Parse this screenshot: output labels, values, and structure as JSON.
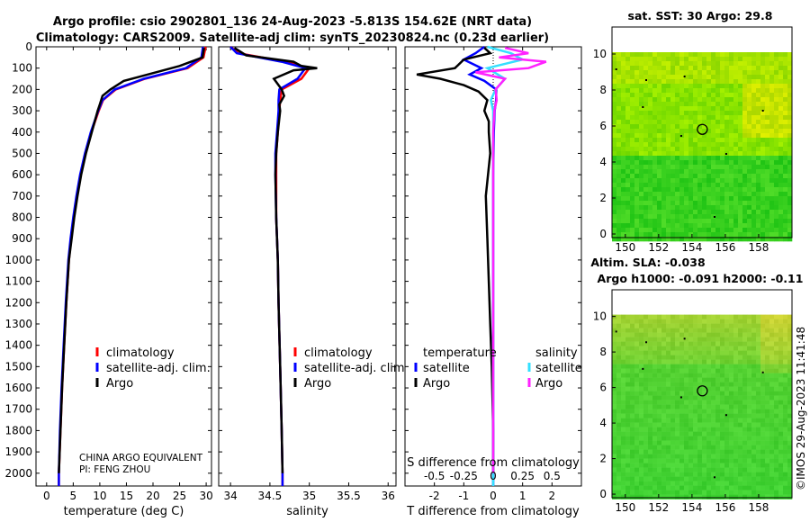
{
  "header": {
    "title_line1": "Argo profile: csio 2902801_136 24-Aug-2023 -5.813S 154.62E (NRT data)",
    "title_line2": "Climatology: CARS2009. Satellite-adj clim: synTS_20230824.nc (0.23d earlier)"
  },
  "watermark": "©IMOS 29-Aug-2023 11:41:48",
  "colors": {
    "climatology": "#ff0000",
    "satellite": "#0000ff",
    "argo": "#000000",
    "sat_salinity": "#33e0ff",
    "argo_salinity": "#ff22ff"
  },
  "chart_data": [
    {
      "type": "line",
      "name": "temperature",
      "xlabel": "temperature (deg C)",
      "ylabel": "",
      "xlim": [
        -2,
        31
      ],
      "ylim": [
        2060,
        0
      ],
      "xticks": [
        0,
        5,
        10,
        15,
        20,
        25,
        30
      ],
      "yticks": [
        0,
        100,
        200,
        300,
        400,
        500,
        600,
        700,
        800,
        900,
        1000,
        1100,
        1200,
        1300,
        1400,
        1500,
        1600,
        1700,
        1800,
        1900,
        2000
      ],
      "legend": [
        "climatology",
        "satellite-adj. clim.",
        "Argo"
      ],
      "legend_position": "lower-right",
      "annotation": [
        "CHINA ARGO EQUIVALENT",
        "PI: FENG ZHOU"
      ],
      "series": [
        {
          "name": "climatology",
          "color": "#ff0000",
          "depth": [
            0,
            50,
            100,
            150,
            200,
            250,
            300,
            400,
            500,
            600,
            700,
            800,
            900,
            1000,
            1200,
            1400,
            1600,
            1800,
            2000,
            2060
          ],
          "values": [
            29.9,
            29.5,
            26.5,
            18.5,
            13.0,
            10.6,
            9.8,
            8.4,
            7.3,
            6.4,
            5.7,
            5.1,
            4.6,
            4.2,
            3.7,
            3.3,
            2.9,
            2.6,
            2.3,
            2.3
          ]
        },
        {
          "name": "satellite-adj. clim.",
          "color": "#0000ff",
          "depth": [
            0,
            50,
            100,
            150,
            200,
            250,
            300,
            400,
            500,
            600,
            700,
            800,
            900,
            1000,
            1200,
            1400,
            1600,
            1800,
            2000,
            2060
          ],
          "values": [
            29.4,
            29.1,
            26.2,
            18.3,
            12.8,
            10.5,
            9.7,
            8.3,
            7.2,
            6.3,
            5.6,
            5.0,
            4.5,
            4.1,
            3.6,
            3.2,
            2.8,
            2.5,
            2.3,
            2.3
          ]
        },
        {
          "name": "Argo",
          "color": "#000000",
          "depth": [
            5,
            50,
            90,
            130,
            160,
            200,
            230,
            270,
            300,
            400,
            500,
            600,
            700,
            800,
            900,
            1000,
            1200,
            1400,
            1600,
            1800,
            2000
          ],
          "values": [
            29.6,
            29.3,
            25.0,
            19.0,
            14.5,
            12.0,
            10.5,
            10.0,
            9.6,
            8.5,
            7.4,
            6.5,
            5.8,
            5.2,
            4.7,
            4.2,
            3.7,
            3.3,
            2.9,
            2.6,
            2.3
          ]
        }
      ]
    },
    {
      "type": "line",
      "name": "salinity",
      "xlabel": "salinity",
      "xlim": [
        33.85,
        36.1
      ],
      "ylim": [
        2060,
        0
      ],
      "xticks": [
        34,
        34.5,
        35,
        35.5,
        36
      ],
      "legend": [
        "climatology",
        "satellite-adj. clim.",
        "Argo"
      ],
      "legend_position": "lower-right",
      "series": [
        {
          "name": "climatology",
          "color": "#ff0000",
          "depth": [
            0,
            30,
            70,
            100,
            150,
            200,
            250,
            300,
            400,
            500,
            600,
            800,
            1000,
            1200,
            1500,
            1800,
            2000,
            2060
          ],
          "values": [
            34.0,
            34.1,
            34.7,
            35.0,
            34.9,
            34.65,
            34.63,
            34.62,
            34.6,
            34.58,
            34.58,
            34.58,
            34.6,
            34.61,
            34.63,
            34.65,
            34.66,
            34.66
          ]
        },
        {
          "name": "satellite-adj. clim.",
          "color": "#0000ff",
          "depth": [
            0,
            30,
            70,
            100,
            150,
            200,
            250,
            300,
            400,
            500,
            600,
            800,
            1000,
            1200,
            1500,
            1800,
            2000,
            2060
          ],
          "values": [
            34.0,
            34.08,
            34.65,
            34.95,
            34.85,
            34.62,
            34.61,
            34.61,
            34.59,
            34.57,
            34.57,
            34.58,
            34.6,
            34.61,
            34.63,
            34.65,
            34.66,
            34.66
          ]
        },
        {
          "name": "Argo",
          "color": "#000000",
          "depth": [
            5,
            40,
            70,
            90,
            100,
            110,
            150,
            200,
            230,
            270,
            300,
            400,
            500,
            600,
            800,
            1000,
            1200,
            1500,
            1800,
            2000
          ],
          "values": [
            34.05,
            34.2,
            34.8,
            34.9,
            35.1,
            34.8,
            34.55,
            34.65,
            34.68,
            34.62,
            34.63,
            34.6,
            34.58,
            34.57,
            34.58,
            34.6,
            34.61,
            34.63,
            34.65,
            34.66
          ]
        }
      ]
    },
    {
      "type": "line",
      "name": "differences",
      "xlabel": "T difference from climatology",
      "xlabel_top": "S difference from climatology",
      "xlim": [
        -3,
        3
      ],
      "ylim": [
        2060,
        0
      ],
      "xticks": [
        -2,
        -1,
        0,
        1,
        2
      ],
      "xticks_top": [
        -0.5,
        -0.25,
        0,
        0.25,
        0.5
      ],
      "legend_left": [
        "temperature",
        "satellite",
        "Argo"
      ],
      "legend_right": [
        "salinity",
        "satellite",
        "Argo"
      ],
      "series": [
        {
          "name": "T satellite",
          "color": "#0000ff",
          "depth": [
            0,
            30,
            60,
            100,
            130,
            160,
            200,
            250,
            300,
            400,
            600,
            1000,
            1500,
            2000,
            2060
          ],
          "values": [
            -0.3,
            -0.6,
            -1.0,
            -0.4,
            -0.8,
            -0.3,
            0.1,
            0.1,
            0.05,
            0.02,
            0,
            0,
            0,
            0,
            0
          ]
        },
        {
          "name": "T Argo",
          "color": "#000000",
          "depth": [
            5,
            30,
            60,
            100,
            130,
            150,
            180,
            210,
            250,
            300,
            350,
            400,
            500,
            700,
            900,
            1100,
            1300,
            1500,
            1800,
            2000
          ],
          "values": [
            -0.3,
            -0.1,
            -1.0,
            -1.3,
            -2.6,
            -1.8,
            -1.0,
            -0.5,
            -0.2,
            -0.3,
            -0.15,
            -0.15,
            -0.1,
            -0.25,
            -0.2,
            -0.15,
            -0.1,
            -0.05,
            0,
            0
          ]
        },
        {
          "name": "S satellite",
          "color": "#33e0ff",
          "depth": [
            0,
            30,
            60,
            100,
            150,
            200,
            250,
            300,
            400,
            600,
            1000,
            1500,
            2000,
            2060
          ],
          "values": [
            -0.05,
            0.15,
            0.25,
            -0.05,
            0.1,
            0.02,
            -0.02,
            0,
            0,
            0,
            0,
            0,
            0,
            0
          ]
        },
        {
          "name": "S Argo",
          "color": "#ff22ff",
          "depth": [
            5,
            30,
            50,
            70,
            100,
            120,
            150,
            200,
            250,
            300,
            400,
            600,
            1000,
            1500,
            2000
          ],
          "values": [
            0.1,
            0.3,
            0.05,
            0.45,
            0.3,
            -0.15,
            0.1,
            0.02,
            0.03,
            0.01,
            0,
            0,
            0,
            0,
            0
          ]
        }
      ]
    },
    {
      "type": "heatmap",
      "name": "sst_map",
      "title": "sat. SST: 30 Argo: 29.8",
      "xticks": [
        150,
        152,
        154,
        156,
        158
      ],
      "yticks": [
        0,
        2,
        4,
        6,
        8,
        10
      ],
      "xlim": [
        149.2,
        160
      ],
      "ylim": [
        -0.2,
        11.5
      ],
      "argo_position": [
        154.62,
        5.813
      ]
    },
    {
      "type": "heatmap",
      "name": "sla_map",
      "title": "Altim. SLA: -0.038",
      "subtitle": "Argo h1000: -0.091 h2000: -0.11",
      "xticks": [
        150,
        152,
        154,
        156,
        158
      ],
      "yticks": [
        0,
        2,
        4,
        6,
        8,
        10
      ],
      "xlim": [
        149.2,
        160
      ],
      "ylim": [
        -0.2,
        11.5
      ],
      "argo_position": [
        154.62,
        5.813
      ]
    }
  ]
}
